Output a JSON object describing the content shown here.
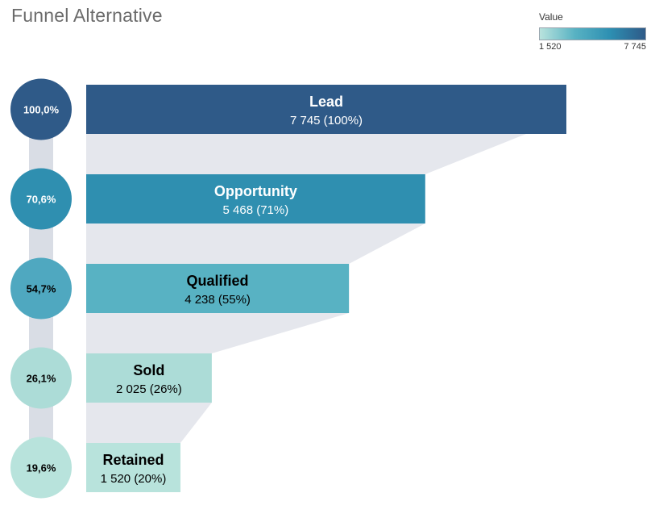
{
  "title": "Funnel Alternative",
  "legend": {
    "title": "Value",
    "min_label": "1 520",
    "max_label": "7 745"
  },
  "colors": {
    "low": "#b9e3dd",
    "mid_low": "#58b2c3",
    "mid_high": "#2d8fb2",
    "high": "#2f5a88",
    "funnel_background": "#e5e7ed",
    "connector": "#d9dde5"
  },
  "chart_data": {
    "type": "bar",
    "orientation": "horizontal",
    "categories": [
      "Lead",
      "Opportunity",
      "Qualified",
      "Sold",
      "Retained"
    ],
    "values": [
      7745,
      5468,
      4238,
      2025,
      1520
    ],
    "percent_of_first": [
      "100,0%",
      "70,6%",
      "54,7%",
      "26,1%",
      "19,6%"
    ],
    "bar_value_labels": [
      "7 745 (100%)",
      "5 468 (71%)",
      "4 238 (55%)",
      "2 025 (26%)",
      "1 520 (20%)"
    ],
    "bar_fills": [
      "#2f5a88",
      "#2f8fb0",
      "#58b2c3",
      "#acdcd7",
      "#b8e3dc"
    ],
    "circle_fills": [
      "#2f5a88",
      "#2f8fb0",
      "#4fa8c0",
      "#acdcd7",
      "#b8e3dc"
    ],
    "label_colors": [
      "#ffffff",
      "#ffffff",
      "#000000",
      "#000000",
      "#000000"
    ],
    "circle_label_colors": [
      "#ffffff",
      "#ffffff",
      "#000000",
      "#000000",
      "#000000"
    ],
    "xlim": [
      0,
      7745
    ],
    "color_scale": {
      "min": 1520,
      "max": 7745
    },
    "xlabel": "",
    "ylabel": "",
    "grid": false
  }
}
